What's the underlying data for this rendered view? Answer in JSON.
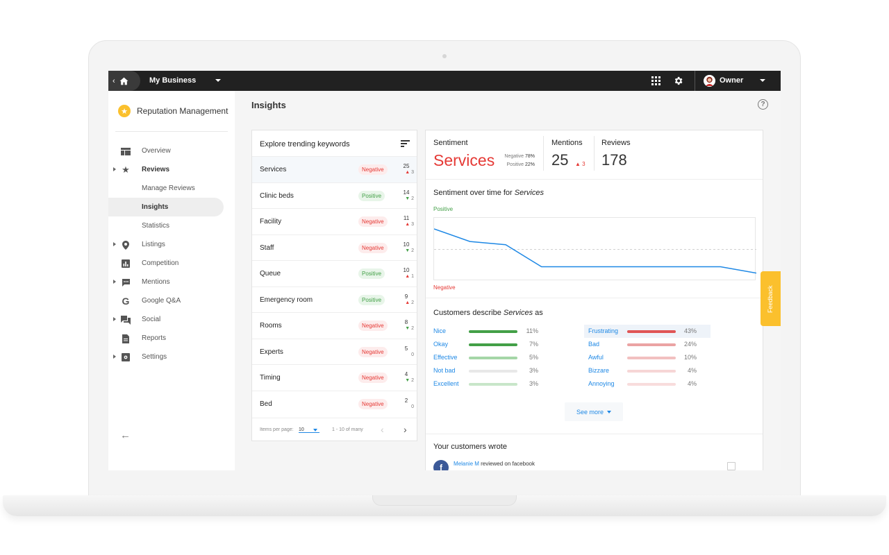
{
  "topbar": {
    "business_name": "My Business",
    "user_name": "Owner"
  },
  "sidebar": {
    "app_title": "Reputation Management",
    "items": [
      {
        "label": "Overview",
        "icon": "dashboard-icon"
      },
      {
        "label": "Reviews",
        "icon": "star-icon"
      },
      {
        "label": "Manage Reviews"
      },
      {
        "label": "Insights"
      },
      {
        "label": "Statistics"
      },
      {
        "label": "Listings",
        "icon": "location-pin-icon"
      },
      {
        "label": "Competition",
        "icon": "bar-chart-icon"
      },
      {
        "label": "Mentions",
        "icon": "chat-bubble-icon"
      },
      {
        "label": "Google Q&A",
        "icon": "google-icon"
      },
      {
        "label": "Social",
        "icon": "forum-icon"
      },
      {
        "label": "Reports",
        "icon": "document-icon"
      },
      {
        "label": "Settings",
        "icon": "settings-icon"
      }
    ]
  },
  "page": {
    "title": "Insights"
  },
  "keywords": {
    "heading": "Explore trending keywords",
    "rows": [
      {
        "name": "Services",
        "sentiment": "Negative",
        "count": "25",
        "trend": "3",
        "dir": "up"
      },
      {
        "name": "Clinic beds",
        "sentiment": "Positive",
        "count": "14",
        "trend": "2",
        "dir": "down"
      },
      {
        "name": "Facility",
        "sentiment": "Negative",
        "count": "11",
        "trend": "3",
        "dir": "up"
      },
      {
        "name": "Staff",
        "sentiment": "Negative",
        "count": "10",
        "trend": "2",
        "dir": "down"
      },
      {
        "name": "Queue",
        "sentiment": "Positive",
        "count": "10",
        "trend": "1",
        "dir": "up"
      },
      {
        "name": "Emergency room",
        "sentiment": "Positive",
        "count": "9",
        "trend": "2",
        "dir": "up"
      },
      {
        "name": "Rooms",
        "sentiment": "Negative",
        "count": "8",
        "trend": "2",
        "dir": "down"
      },
      {
        "name": "Experts",
        "sentiment": "Negative",
        "count": "5",
        "trend": "0",
        "dir": "none"
      },
      {
        "name": "Timing",
        "sentiment": "Negative",
        "count": "4",
        "trend": "2",
        "dir": "down"
      },
      {
        "name": "Bed",
        "sentiment": "Negative",
        "count": "2",
        "trend": "0",
        "dir": "none"
      }
    ],
    "footer": {
      "items_per_page_label": "Items per page:",
      "items_per_page": "10",
      "range": "1 - 10 of many"
    }
  },
  "detail": {
    "sentiment_label": "Sentiment",
    "keyword": "Services",
    "negative_label": "Negative",
    "negative_pct": "78%",
    "positive_label": "Positive",
    "positive_pct": "22%",
    "mentions_label": "Mentions",
    "mentions_value": "25",
    "mentions_delta": "3",
    "reviews_label": "Reviews",
    "reviews_value": "178",
    "over_time_prefix": "Sentiment over time for",
    "describe_prefix": "Customers describe",
    "describe_suffix": "as",
    "chart_top_label": "Positive",
    "chart_bottom_label": "Negative",
    "see_more": "See more",
    "wrote_title": "Your customers wrote",
    "review_author": "Melanie M",
    "review_text": "reviewed on facebook"
  },
  "chart_data": {
    "type": "line",
    "y_top_label": "Positive",
    "y_bottom_label": "Negative",
    "ylim": [
      -1,
      1
    ],
    "series": [
      {
        "values": [
          0.65,
          0.25,
          0.15,
          -0.55,
          -0.55,
          -0.55,
          -0.55,
          -0.55,
          -0.55,
          -0.75
        ]
      }
    ],
    "reference_line": 0,
    "color": "#1e88e5"
  },
  "descriptors": {
    "positive": [
      {
        "word": "Nice",
        "pct": "11%",
        "value": 11
      },
      {
        "word": "Okay",
        "pct": "7%",
        "value": 7
      },
      {
        "word": "Effective",
        "pct": "5%",
        "value": 5
      },
      {
        "word": "Not bad",
        "pct": "3%",
        "value": 3
      },
      {
        "word": "Excellent",
        "pct": "3%",
        "value": 3
      }
    ],
    "negative": [
      {
        "word": "Frustrating",
        "pct": "43%",
        "value": 43
      },
      {
        "word": "Bad",
        "pct": "24%",
        "value": 24
      },
      {
        "word": "Awful",
        "pct": "10%",
        "value": 10
      },
      {
        "word": "Bizzare",
        "pct": "4%",
        "value": 4
      },
      {
        "word": "Annoying",
        "pct": "4%",
        "value": 4
      }
    ]
  },
  "feedback_label": "Feedback",
  "colors": {
    "accent": "#1e88e5",
    "negative": "#e53935",
    "positive": "#43a047",
    "topbar": "#212121",
    "feedback": "#fbc02d"
  }
}
